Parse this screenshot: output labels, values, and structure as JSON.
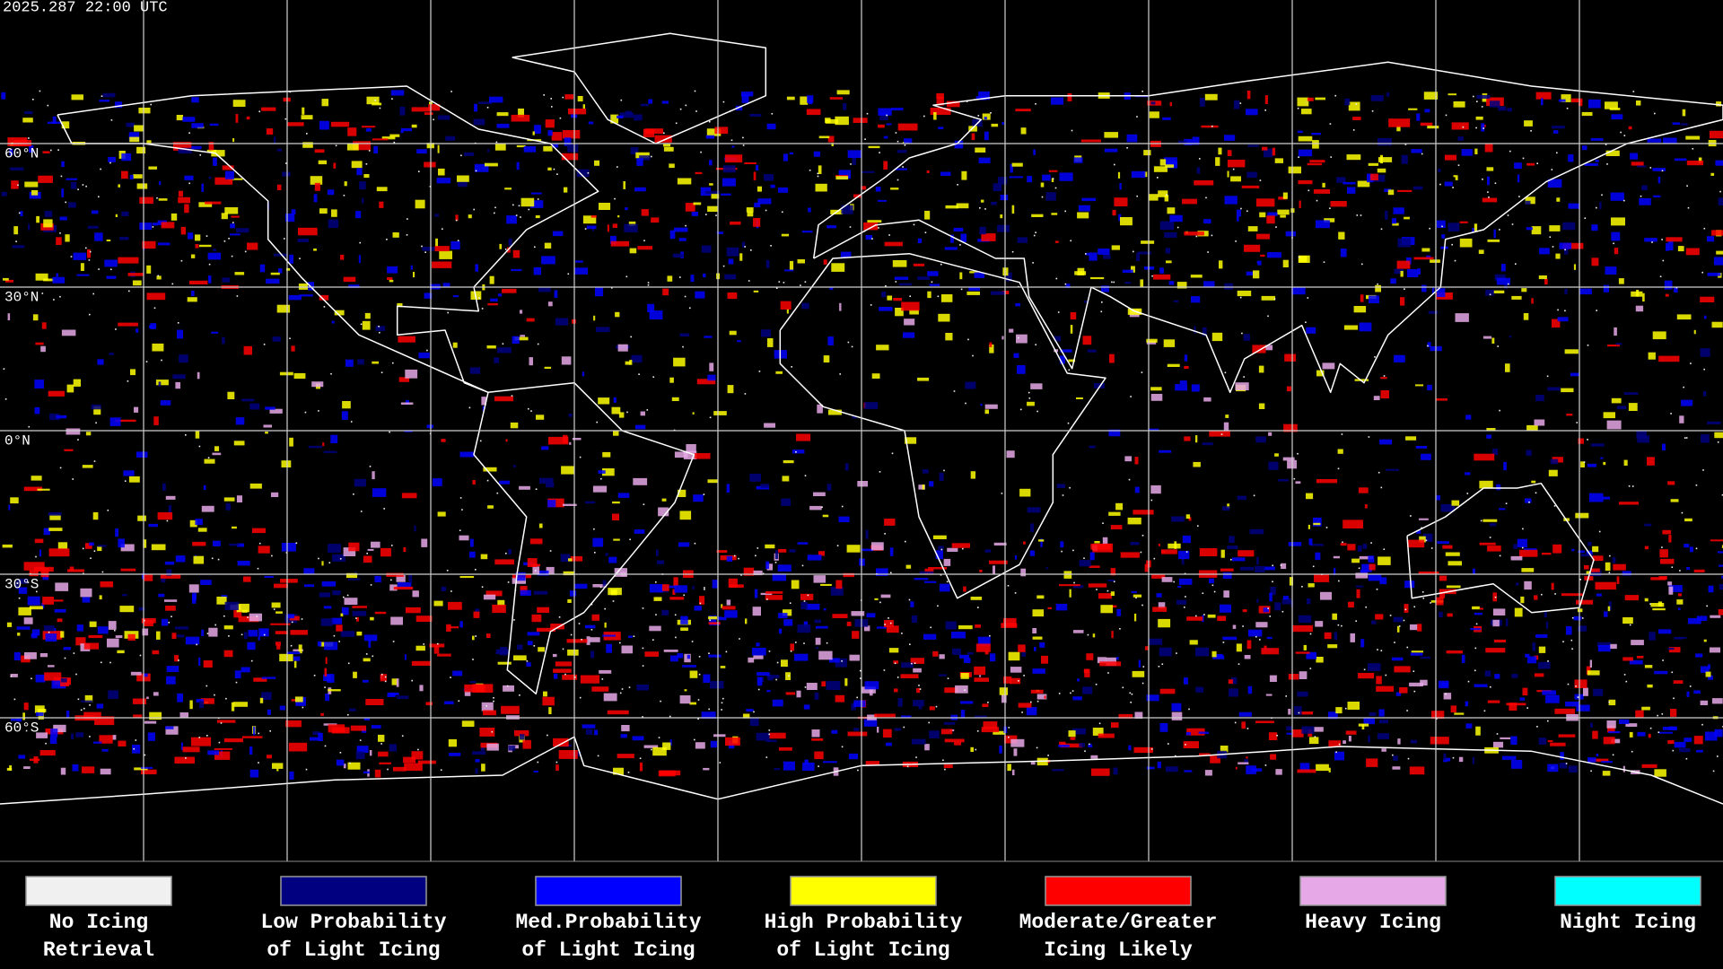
{
  "header": {
    "timestamp": "2025.287 22:00 UTC"
  },
  "lat_labels": [
    "60°N",
    "30°N",
    "0°N",
    "30°S",
    "60°S"
  ],
  "legend": [
    {
      "color": "#f0f0f0",
      "label": [
        "No Icing",
        "Retrieval"
      ]
    },
    {
      "color": "#000080",
      "label": [
        "Low Probability",
        "of Light Icing"
      ]
    },
    {
      "color": "#0000ff",
      "label": [
        "Med.Probability",
        "of Light Icing"
      ]
    },
    {
      "color": "#ffff00",
      "label": [
        "High Probability",
        "of Light Icing"
      ]
    },
    {
      "color": "#ff0000",
      "label": [
        "Moderate/Greater",
        "Icing Likely"
      ]
    },
    {
      "color": "#e6a8e6",
      "label": [
        "Heavy Icing",
        ""
      ]
    },
    {
      "color": "#00ffff",
      "label": [
        "Night Icing",
        ""
      ]
    }
  ]
}
